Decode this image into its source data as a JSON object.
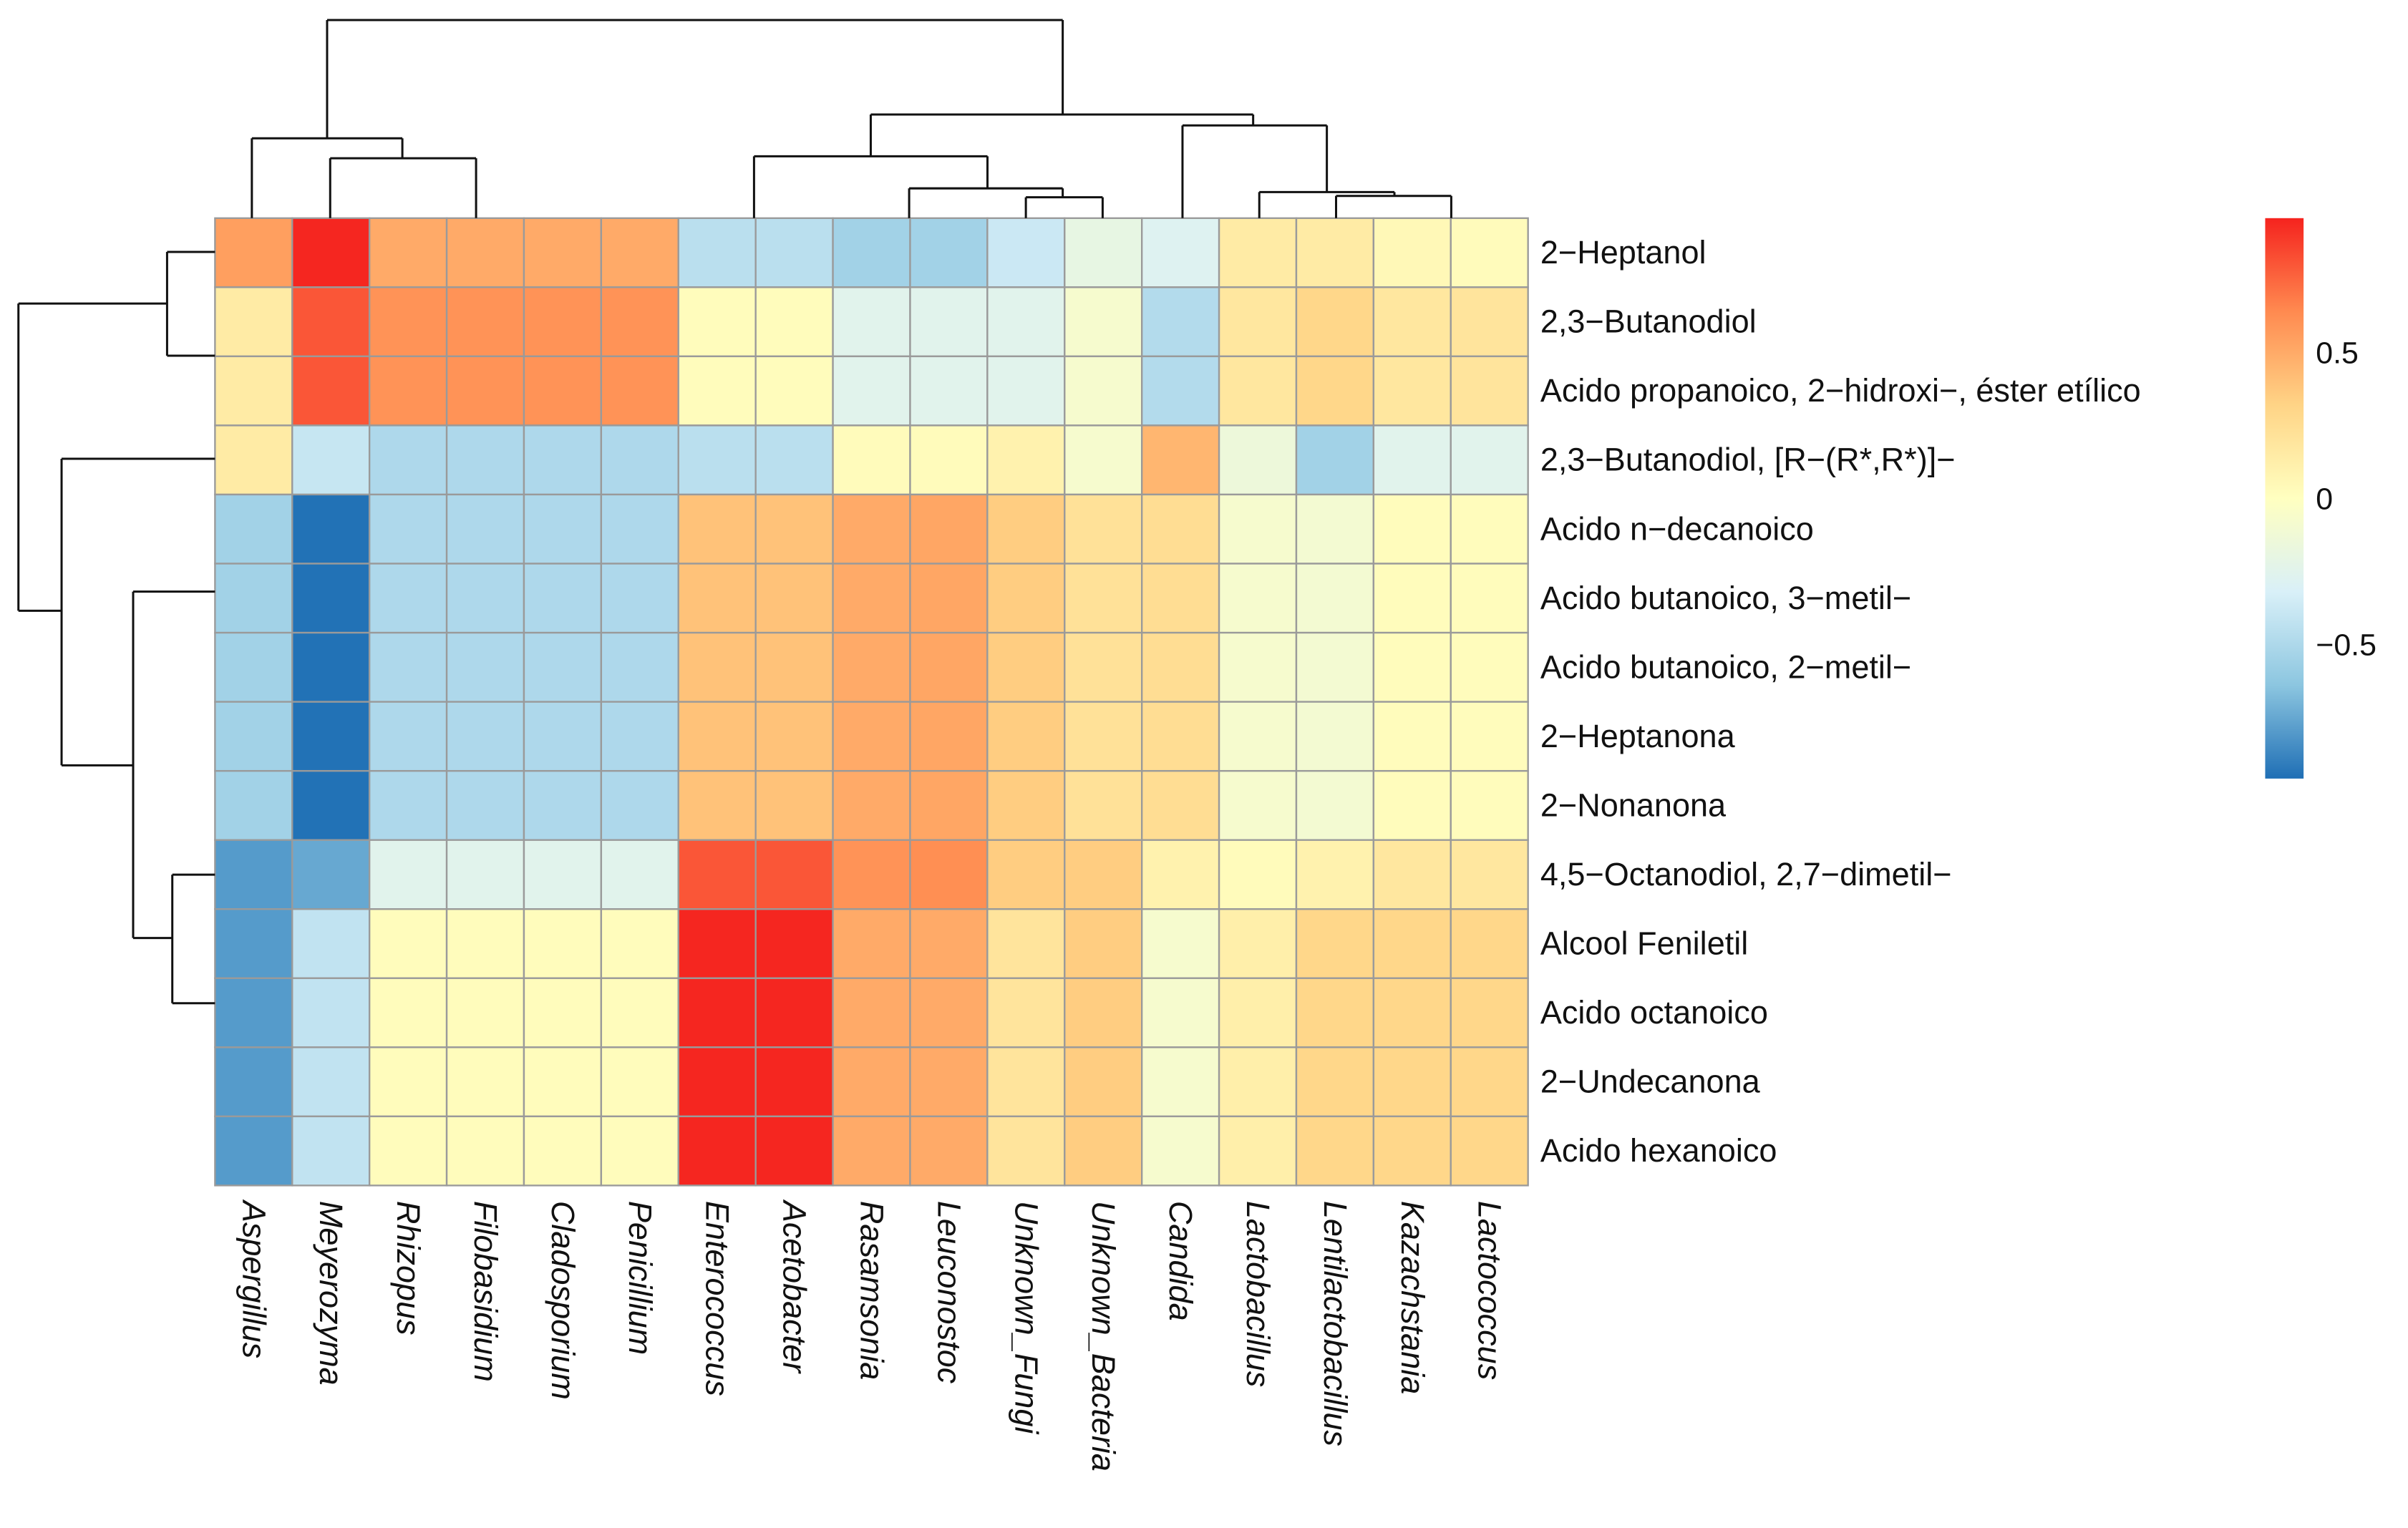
{
  "chart_data": {
    "type": "heatmap",
    "title": "",
    "columns": [
      "Aspergillus",
      "Meyerozyma",
      "Rhizopus",
      "Filobasidium",
      "Cladosporium",
      "Penicillium",
      "Enterococcus",
      "Acetobacter",
      "Rasamsonia",
      "Leuconostoc",
      "Unknown_Fungi",
      "Unknown_Bacteria",
      "Candida",
      "Lactobacillus",
      "Lentilactobacillus",
      "Kazachstania",
      "Lactococcus"
    ],
    "rows": [
      "2−Heptanol",
      "2,3−Butanodiol",
      "Acido propanoico, 2−hidroxi−, éster etílico",
      "2,3−Butanodiol, [R−(R*,R*)]−",
      "Acido n−decanoico",
      "Acido butanoico, 3−metil−",
      "Acido butanoico, 2−metil−",
      "2−Heptanona",
      "2−Nonanona",
      "4,5−Octanodiol, 2,7−dimetil−",
      "Alcool Feniletil",
      "Acido octanoico",
      "2−Undecanona",
      "Acido hexanoico"
    ],
    "values": [
      [
        0.55,
        0.95,
        0.5,
        0.5,
        0.5,
        0.5,
        -0.45,
        -0.45,
        -0.55,
        -0.55,
        -0.38,
        -0.2,
        -0.28,
        0.15,
        0.15,
        0.05,
        0.03
      ],
      [
        0.15,
        0.8,
        0.6,
        0.6,
        0.6,
        0.6,
        0.02,
        0.02,
        -0.25,
        -0.25,
        -0.25,
        -0.08,
        -0.48,
        0.18,
        0.3,
        0.18,
        0.2
      ],
      [
        0.15,
        0.8,
        0.6,
        0.6,
        0.6,
        0.6,
        0.02,
        0.02,
        -0.25,
        -0.25,
        -0.25,
        -0.08,
        -0.48,
        0.18,
        0.3,
        0.18,
        0.2
      ],
      [
        0.15,
        -0.4,
        -0.5,
        -0.5,
        -0.5,
        -0.5,
        -0.45,
        -0.45,
        0.03,
        0.03,
        0.1,
        -0.08,
        0.45,
        -0.15,
        -0.55,
        -0.25,
        -0.25
      ],
      [
        -0.55,
        -0.95,
        -0.5,
        -0.5,
        -0.5,
        -0.5,
        0.4,
        0.4,
        0.5,
        0.52,
        0.35,
        0.22,
        0.25,
        -0.08,
        -0.1,
        0.02,
        0.02
      ],
      [
        -0.55,
        -0.95,
        -0.5,
        -0.5,
        -0.5,
        -0.5,
        0.4,
        0.4,
        0.5,
        0.52,
        0.35,
        0.22,
        0.25,
        -0.08,
        -0.1,
        0.02,
        0.02
      ],
      [
        -0.55,
        -0.95,
        -0.5,
        -0.5,
        -0.5,
        -0.5,
        0.4,
        0.4,
        0.5,
        0.52,
        0.35,
        0.22,
        0.25,
        -0.08,
        -0.1,
        0.02,
        0.02
      ],
      [
        -0.55,
        -0.95,
        -0.5,
        -0.5,
        -0.5,
        -0.5,
        0.4,
        0.4,
        0.5,
        0.52,
        0.35,
        0.22,
        0.25,
        -0.08,
        -0.1,
        0.02,
        0.02
      ],
      [
        -0.55,
        -0.95,
        -0.5,
        -0.5,
        -0.5,
        -0.5,
        0.4,
        0.4,
        0.5,
        0.52,
        0.35,
        0.22,
        0.25,
        -0.08,
        -0.1,
        0.02,
        0.02
      ],
      [
        -0.8,
        -0.75,
        -0.25,
        -0.25,
        -0.25,
        -0.25,
        0.8,
        0.8,
        0.6,
        0.62,
        0.35,
        0.35,
        0.1,
        0.03,
        0.1,
        0.18,
        0.18
      ],
      [
        -0.8,
        -0.42,
        0.02,
        0.02,
        0.02,
        0.02,
        0.95,
        0.95,
        0.5,
        0.5,
        0.2,
        0.35,
        -0.08,
        0.12,
        0.3,
        0.3,
        0.3
      ],
      [
        -0.8,
        -0.42,
        0.02,
        0.02,
        0.02,
        0.02,
        0.95,
        0.95,
        0.5,
        0.5,
        0.2,
        0.35,
        -0.08,
        0.12,
        0.3,
        0.3,
        0.3
      ],
      [
        -0.8,
        -0.42,
        0.02,
        0.02,
        0.02,
        0.02,
        0.95,
        0.95,
        0.5,
        0.5,
        0.2,
        0.35,
        -0.08,
        0.12,
        0.3,
        0.3,
        0.3
      ],
      [
        -0.8,
        -0.42,
        0.02,
        0.02,
        0.02,
        0.02,
        0.95,
        0.95,
        0.5,
        0.5,
        0.2,
        0.35,
        -0.08,
        0.12,
        0.3,
        0.3,
        0.3
      ]
    ],
    "color_scale": {
      "range": [
        -0.96,
        0.96
      ],
      "ticks": [
        0.5,
        0,
        -0.5
      ],
      "tick_labels": [
        "0.5",
        "0",
        "−0.5"
      ],
      "stops": [
        {
          "value": -0.96,
          "color": "#1F6FB5"
        },
        {
          "value": -0.64,
          "color": "#8CC6E0"
        },
        {
          "value": -0.32,
          "color": "#D9F0F8"
        },
        {
          "value": 0,
          "color": "#FFFFC0"
        },
        {
          "value": 0.32,
          "color": "#FFD486"
        },
        {
          "value": 0.64,
          "color": "#FF8A50"
        },
        {
          "value": 0.96,
          "color": "#F5231E"
        }
      ]
    },
    "legend_placement": "right",
    "row_dendrogram": true,
    "column_dendrogram": true,
    "grid": true
  }
}
